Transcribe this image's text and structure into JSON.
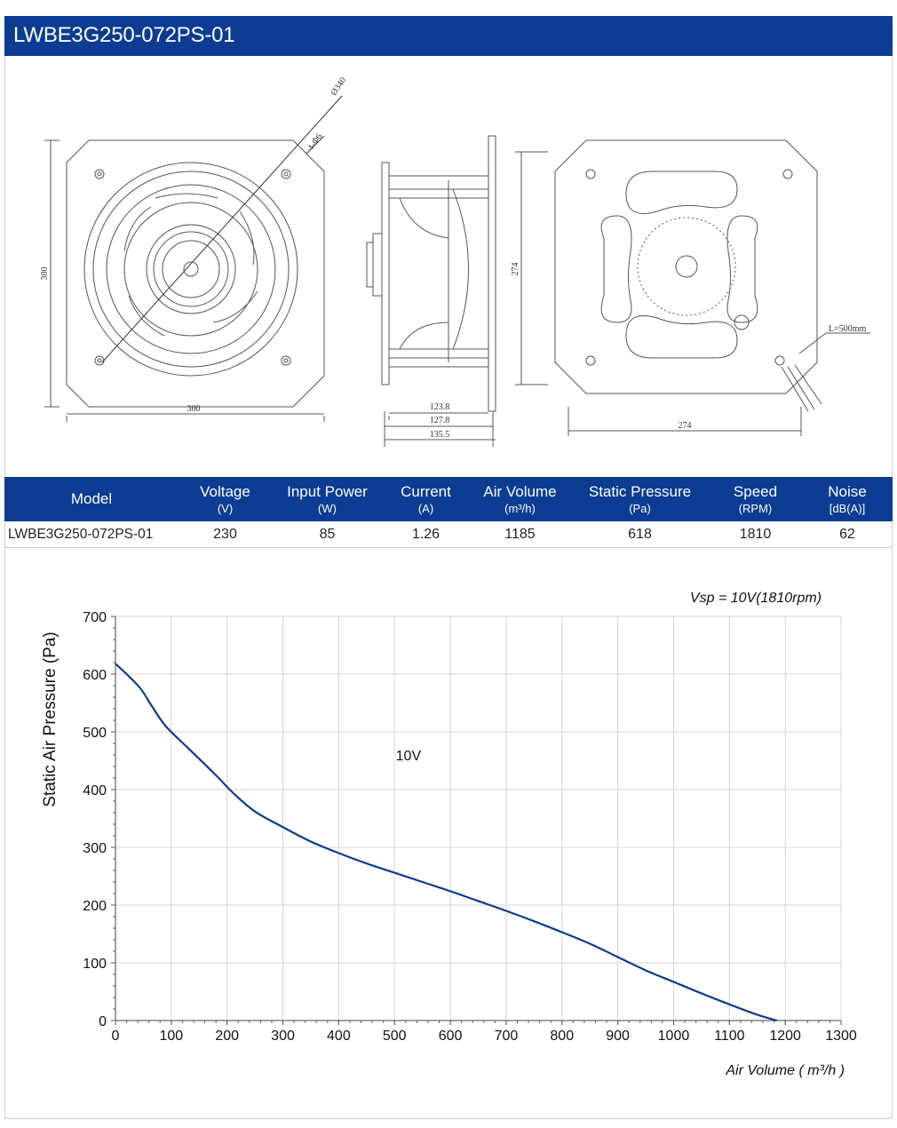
{
  "title": "LWBE3G250-072PS-01",
  "drawing": {
    "front_dims": {
      "width": "300",
      "height": "300",
      "diameter": "Ø340",
      "holes": "4-Φ6"
    },
    "side_dims": {
      "d1": "123.8",
      "d2": "127.8",
      "d3": "135.5"
    },
    "rear_dims": {
      "width": "274",
      "height": "274",
      "cable": "L=500mm"
    }
  },
  "spec_table": {
    "headers": [
      {
        "name": "Model",
        "unit": ""
      },
      {
        "name": "Voltage",
        "unit": "(V)"
      },
      {
        "name": "Input Power",
        "unit": "(W)"
      },
      {
        "name": "Current",
        "unit": "(A)"
      },
      {
        "name": "Air Volume",
        "unit": "(m³/h)"
      },
      {
        "name": "Static Pressure",
        "unit": "(Pa)"
      },
      {
        "name": "Speed",
        "unit": "(RPM)"
      },
      {
        "name": "Noise",
        "unit": "[dB(A)]"
      }
    ],
    "row": [
      "LWBE3G250-072PS-01",
      "230",
      "85",
      "1.26",
      "1185",
      "618",
      "1810",
      "62"
    ]
  },
  "colors": {
    "header_bg": "#0b3c91",
    "curve": "#0b3c91"
  },
  "chart_data": {
    "type": "line",
    "title": "Vsp = 10V(1810rpm)",
    "xlabel": "Air Volume ( m³/h )",
    "ylabel": "Static Air Pressure  (Pa)",
    "xlim": [
      0,
      1300
    ],
    "ylim": [
      0,
      700
    ],
    "xticks": [
      0,
      100,
      200,
      300,
      400,
      500,
      600,
      700,
      800,
      900,
      1000,
      1100,
      1200,
      1300
    ],
    "yticks": [
      0,
      100,
      200,
      300,
      400,
      500,
      600,
      700
    ],
    "grid": true,
    "annotations": [
      {
        "text": "10V",
        "x": 550,
        "y": 460
      }
    ],
    "series": [
      {
        "name": "10V",
        "x": [
          0,
          20,
          45,
          65,
          90,
          130,
          180,
          210,
          250,
          300,
          350,
          400,
          450,
          500,
          550,
          600,
          650,
          700,
          750,
          800,
          850,
          900,
          950,
          1000,
          1050,
          1100,
          1150,
          1185
        ],
        "y": [
          618,
          600,
          575,
          545,
          510,
          472,
          425,
          395,
          362,
          335,
          310,
          290,
          272,
          256,
          240,
          224,
          207,
          190,
          172,
          153,
          133,
          110,
          87,
          67,
          47,
          28,
          10,
          0
        ]
      }
    ]
  }
}
